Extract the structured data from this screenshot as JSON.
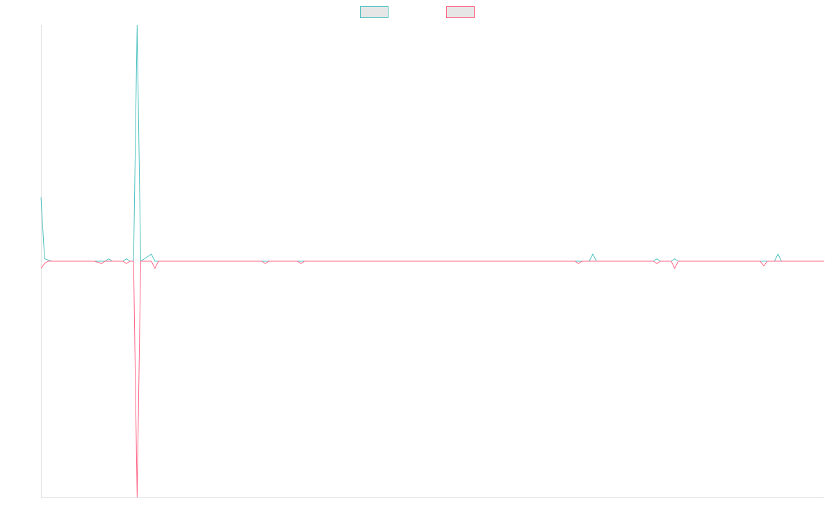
{
  "chart_data": {
    "type": "line",
    "title": "",
    "xlabel": "",
    "ylabel": "",
    "ylim": [
      -1,
      1
    ],
    "xlim": [
      0,
      220
    ],
    "grid": false,
    "legend_position": "top-center",
    "series": [
      {
        "color": "#4bc0c0",
        "fill": "#e6e6e6",
        "points": [
          [
            0,
            0.27
          ],
          [
            1,
            0.01
          ],
          [
            3,
            0.0
          ],
          [
            10,
            0.0
          ],
          [
            16,
            0.0
          ],
          [
            18,
            0.0
          ],
          [
            19,
            0.01
          ],
          [
            20,
            0.0
          ],
          [
            23,
            0.0
          ],
          [
            24,
            0.01
          ],
          [
            25,
            0.0
          ],
          [
            26,
            0.0
          ],
          [
            27,
            1.0
          ],
          [
            28,
            0.0
          ],
          [
            31,
            0.03
          ],
          [
            32,
            0.0
          ],
          [
            60,
            0.0
          ],
          [
            115,
            0.0
          ],
          [
            128,
            0.0
          ],
          [
            140,
            0.0
          ],
          [
            154,
            0.0
          ],
          [
            155,
            0.03
          ],
          [
            156,
            0.0
          ],
          [
            172,
            0.0
          ],
          [
            173,
            0.01
          ],
          [
            174,
            0.0
          ],
          [
            177,
            0.0
          ],
          [
            178,
            0.01
          ],
          [
            179,
            0.0
          ],
          [
            206,
            0.0
          ],
          [
            207,
            0.03
          ],
          [
            208,
            0.0
          ],
          [
            220,
            0.0
          ]
        ]
      },
      {
        "color": "#ff6384",
        "fill": "#e6e6e6",
        "points": [
          [
            0,
            -0.03
          ],
          [
            1,
            -0.01
          ],
          [
            2,
            0.0
          ],
          [
            15,
            0.0
          ],
          [
            17,
            -0.01
          ],
          [
            18,
            0.0
          ],
          [
            23,
            0.0
          ],
          [
            24,
            -0.01
          ],
          [
            25,
            0.0
          ],
          [
            26,
            0.0
          ],
          [
            27,
            -1.0
          ],
          [
            28,
            0.0
          ],
          [
            31,
            0.0
          ],
          [
            32,
            -0.03
          ],
          [
            33,
            0.0
          ],
          [
            62,
            0.0
          ],
          [
            63,
            -0.01
          ],
          [
            64,
            0.0
          ],
          [
            72,
            0.0
          ],
          [
            73,
            -0.01
          ],
          [
            74,
            0.0
          ],
          [
            150,
            0.0
          ],
          [
            151,
            -0.01
          ],
          [
            152,
            0.0
          ],
          [
            154,
            0.0
          ],
          [
            155,
            0.0
          ],
          [
            156,
            0.0
          ],
          [
            172,
            0.0
          ],
          [
            173,
            -0.01
          ],
          [
            174,
            0.0
          ],
          [
            177,
            0.0
          ],
          [
            178,
            -0.03
          ],
          [
            179,
            0.0
          ],
          [
            202,
            0.0
          ],
          [
            203,
            -0.02
          ],
          [
            204,
            0.0
          ],
          [
            220,
            0.0
          ]
        ]
      }
    ]
  }
}
